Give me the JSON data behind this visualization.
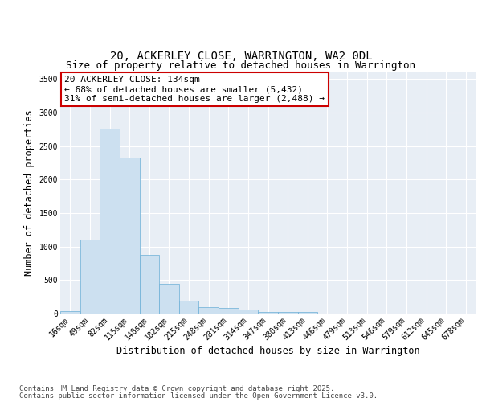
{
  "title_line1": "20, ACKERLEY CLOSE, WARRINGTON, WA2 0DL",
  "title_line2": "Size of property relative to detached houses in Warrington",
  "xlabel": "Distribution of detached houses by size in Warrington",
  "ylabel": "Number of detached properties",
  "categories": [
    "16sqm",
    "49sqm",
    "82sqm",
    "115sqm",
    "148sqm",
    "182sqm",
    "215sqm",
    "248sqm",
    "281sqm",
    "314sqm",
    "347sqm",
    "380sqm",
    "413sqm",
    "446sqm",
    "479sqm",
    "513sqm",
    "546sqm",
    "579sqm",
    "612sqm",
    "645sqm",
    "678sqm"
  ],
  "values": [
    35,
    1110,
    2760,
    2330,
    880,
    440,
    195,
    100,
    80,
    55,
    30,
    25,
    20,
    4,
    2,
    1,
    0,
    0,
    0,
    0,
    0
  ],
  "bar_color": "#cce0f0",
  "bar_edge_color": "#6aaed6",
  "background_color": "#e8eef5",
  "grid_color": "#ffffff",
  "annotation_title": "20 ACKERLEY CLOSE: 134sqm",
  "annotation_line2": "← 68% of detached houses are smaller (5,432)",
  "annotation_line3": "31% of semi-detached houses are larger (2,488) →",
  "annotation_box_color": "#ffffff",
  "annotation_border_color": "#cc0000",
  "footer_line1": "Contains HM Land Registry data © Crown copyright and database right 2025.",
  "footer_line2": "Contains public sector information licensed under the Open Government Licence v3.0.",
  "ylim": [
    0,
    3600
  ],
  "yticks": [
    0,
    500,
    1000,
    1500,
    2000,
    2500,
    3000,
    3500
  ],
  "title_fontsize": 10,
  "subtitle_fontsize": 9,
  "axis_label_fontsize": 8.5,
  "tick_fontsize": 7,
  "annotation_fontsize": 8,
  "footer_fontsize": 6.5
}
